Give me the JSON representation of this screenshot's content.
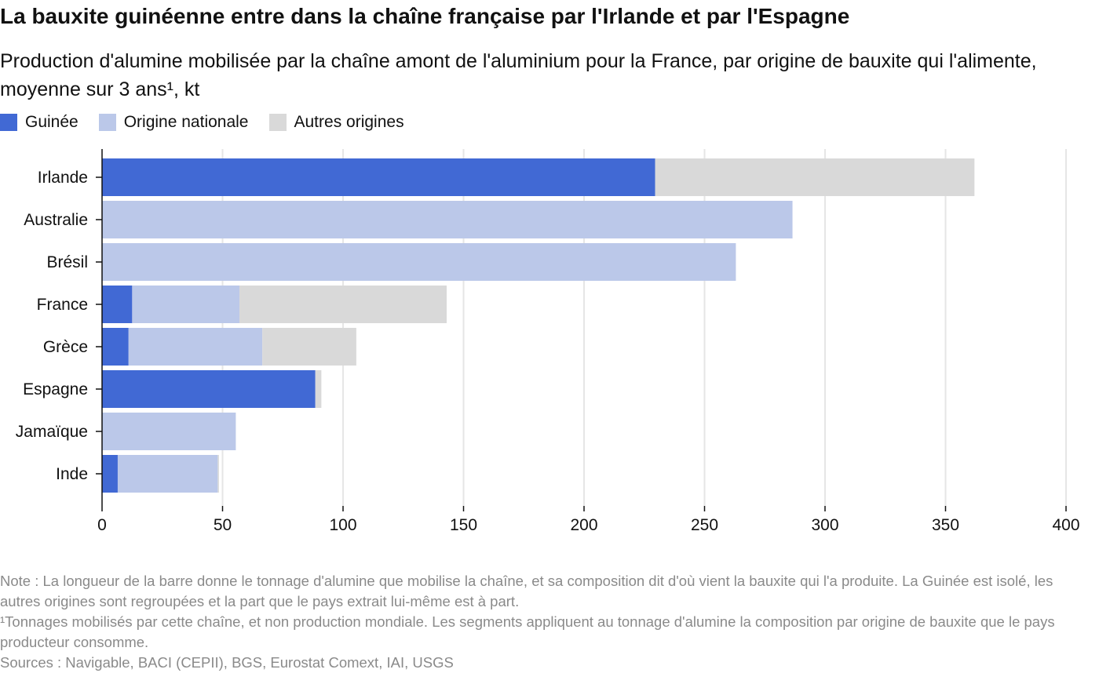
{
  "title": "La bauxite guinéenne entre dans la chaîne française par l'Irlande et par l'Espagne",
  "subtitle": {
    "main": "Production d'alumine mobilisée par la chaîne amont de l'aluminium pour la France, par origine de bauxite qui l'alimente, moyenne sur 3 ans",
    "sup": "¹",
    "unit": ", kt"
  },
  "chart_data": {
    "type": "bar",
    "orientation": "horizontal",
    "stacked": true,
    "categories": [
      "Irlande",
      "Australie",
      "Brésil",
      "France",
      "Grèce",
      "Espagne",
      "Jamaïque",
      "Inde"
    ],
    "series": [
      {
        "name": "Guinée",
        "color": "#4169d4",
        "values": [
          229.5,
          0,
          0,
          12.5,
          11,
          88.5,
          0,
          6.5
        ]
      },
      {
        "name": "Origine nationale",
        "color": "#bbc8e9",
        "values": [
          0,
          286.5,
          263,
          44.5,
          55.5,
          0,
          55.5,
          41.5
        ]
      },
      {
        "name": "Autres origines",
        "color": "#d9d9d9",
        "values": [
          132.5,
          0,
          0,
          86,
          39,
          2.5,
          0,
          0.5
        ]
      }
    ],
    "xlim": [
      0,
      400
    ],
    "xticks": [
      "0",
      "50",
      "100",
      "150",
      "200",
      "250",
      "300",
      "350",
      "400"
    ],
    "grid": "vertical",
    "legend_position": "top-left"
  },
  "footer": {
    "note": "Note : La longueur de la barre donne le tonnage d'alumine que mobilise la chaîne, et sa composition dit d'où vient la bauxite qui l'a produite. La Guinée est isolé, les autres origines sont regroupées et la part que le pays extrait lui-même est à part.",
    "footnote": "¹Tonnages mobilisés par cette chaîne, et non production mondiale. Les segments appliquent au tonnage d'alumine la composition par origine de bauxite que le pays producteur consomme.",
    "sources": "Sources : Navigable, BACI (CEPII), BGS, Eurostat Comext, IAI, USGS"
  }
}
